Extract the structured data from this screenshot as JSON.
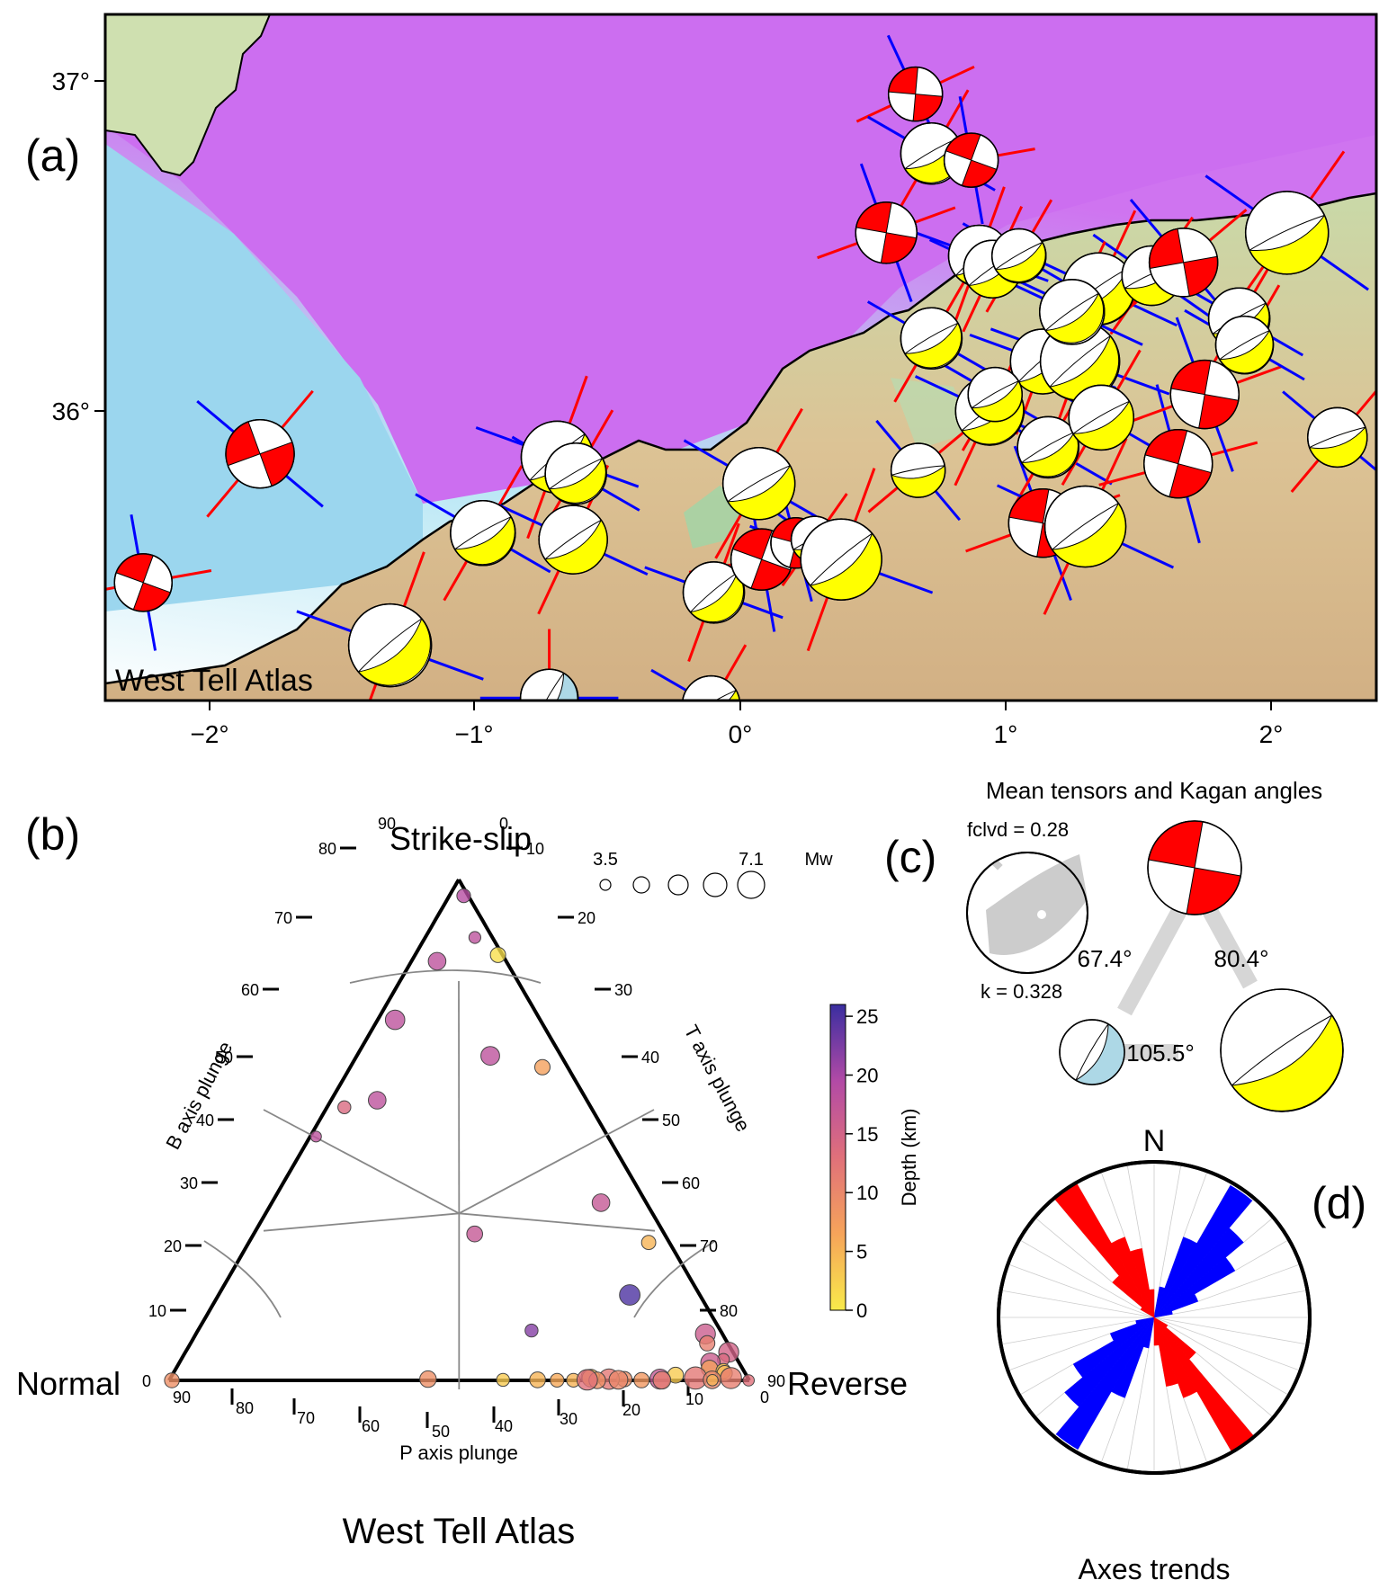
{
  "panel_a": {
    "letter": "(a)",
    "region": "West Tell Atlas",
    "lat_ticks": [
      "37°",
      "36°"
    ],
    "lon_ticks": [
      "−2°",
      "−1°",
      "0°",
      "1°",
      "2°"
    ],
    "colors": {
      "sea_deep": "#cc6ef0",
      "sea_shelf": "#aee2f0",
      "land": "#d8bb8c",
      "strike_slip": "#ff0000",
      "reverse": "#ffff00",
      "normal": "#add8e6",
      "p_axis": "#0000ff",
      "t_axis": "#ff0000"
    }
  },
  "panel_b": {
    "letter": "(b)",
    "title": "West Tell Atlas",
    "vertex_labels": {
      "top": "Strike-slip",
      "left": "Normal",
      "right": "Reverse"
    },
    "axis_labels": {
      "left": "B axis plunge",
      "right": "T axis plunge",
      "bottom": "P axis plunge"
    },
    "left_ticks": [
      "0",
      "10",
      "20",
      "30",
      "40",
      "50",
      "60",
      "70",
      "80",
      "90"
    ],
    "right_ticks": [
      "0",
      "10",
      "20",
      "30",
      "40",
      "50",
      "60",
      "70",
      "80",
      "90"
    ],
    "bottom_ticks": [
      "90",
      "80",
      "70",
      "60",
      "50",
      "40",
      "30",
      "20",
      "10",
      "0"
    ],
    "size_legend": {
      "min": "3.5",
      "max": "7.1",
      "unit": "Mw"
    },
    "colorbar": {
      "label": "Depth (km)",
      "ticks": [
        "0",
        "5",
        "10",
        "15",
        "20",
        "25"
      ]
    }
  },
  "panel_c": {
    "letter": "(c)",
    "title": "Mean tensors and Kagan angles",
    "fclvd": "fclvd = 0.28",
    "k": "k = 0.328",
    "angles": [
      "67.4°",
      "80.4°",
      "105.5°"
    ]
  },
  "panel_d": {
    "letter": "(d)",
    "north": "N",
    "caption": "Axes trends"
  },
  "chart_data": {
    "type": "scatter",
    "title": "West Tell Atlas",
    "xlabel": "P axis plunge",
    "ylabel": "B axis plunge",
    "colorbar_label": "Depth (km)",
    "clim": [
      0,
      26
    ],
    "size_range_mw": [
      3.5,
      7.1
    ],
    "points": [
      {
        "b": 78,
        "t": 9,
        "p": 5,
        "depth": 19,
        "mw": 4.3
      },
      {
        "b": 70,
        "t": 17,
        "p": 10,
        "depth": 18,
        "mw": 4.0
      },
      {
        "b": 66,
        "t": 22,
        "p": 5,
        "depth": 1,
        "mw": 4.6
      },
      {
        "b": 65,
        "t": 12,
        "p": 20,
        "depth": 18,
        "mw": 5.0
      },
      {
        "b": 58,
        "t": 10,
        "p": 30,
        "depth": 18,
        "mw": 5.3
      },
      {
        "b": 52,
        "t": 28,
        "p": 20,
        "depth": 18,
        "mw": 5.2
      },
      {
        "b": 52,
        "t": 35,
        "p": 12,
        "depth": 7,
        "mw": 4.6
      },
      {
        "b": 48,
        "t": 10,
        "p": 41,
        "depth": 14,
        "mw": 4.2
      },
      {
        "b": 47,
        "t": 16,
        "p": 36,
        "depth": 18,
        "mw": 5.0
      },
      {
        "b": 46,
        "t": 6,
        "p": 47,
        "depth": 18,
        "mw": 3.8
      },
      {
        "b": 36,
        "t": 48,
        "p": 16,
        "depth": 17,
        "mw": 5.0
      },
      {
        "b": 32,
        "t": 57,
        "p": 11,
        "depth": 5,
        "mw": 4.4
      },
      {
        "b": 31,
        "t": 36,
        "p": 33,
        "depth": 17,
        "mw": 4.7
      },
      {
        "b": 24,
        "t": 56,
        "p": 20,
        "depth": 25,
        "mw": 5.5
      },
      {
        "b": 18,
        "t": 72,
        "p": 10,
        "depth": 16,
        "mw": 5.4
      },
      {
        "b": 16,
        "t": 73,
        "p": 11,
        "depth": 11,
        "mw": 4.6
      },
      {
        "b": 18,
        "t": 48,
        "p": 34,
        "depth": 22,
        "mw": 4.2
      },
      {
        "b": 14,
        "t": 81,
        "p": 5,
        "depth": 15,
        "mw": 5.4
      },
      {
        "b": 12,
        "t": 79,
        "p": 9,
        "depth": 14,
        "mw": 4.0
      },
      {
        "b": 11,
        "t": 76,
        "p": 13,
        "depth": 16,
        "mw": 5.3
      },
      {
        "b": 9,
        "t": 77,
        "p": 14,
        "depth": 7,
        "mw": 4.8
      },
      {
        "b": 8,
        "t": 81,
        "p": 11,
        "depth": 3,
        "mw": 4.5
      },
      {
        "b": 7,
        "t": 82,
        "p": 11,
        "depth": 5,
        "mw": 4.6
      },
      {
        "b": 6,
        "t": 73,
        "p": 21,
        "depth": 3,
        "mw": 4.7
      },
      {
        "b": 4,
        "t": 86,
        "p": 10,
        "depth": 11,
        "mw": 5.6
      },
      {
        "b": 5,
        "t": 62,
        "p": 33,
        "depth": 6,
        "mw": 4.5
      },
      {
        "b": 4,
        "t": 63,
        "p": 33,
        "depth": 4,
        "mw": 5.0
      },
      {
        "b": 3,
        "t": 68,
        "p": 29,
        "depth": 9,
        "mw": 4.6
      },
      {
        "b": 4,
        "t": 78,
        "p": 18,
        "depth": 12,
        "mw": 5.8
      },
      {
        "b": 2,
        "t": 83,
        "p": 15,
        "depth": 10,
        "mw": 5.0
      },
      {
        "b": 3,
        "t": 73,
        "p": 24,
        "depth": 17,
        "mw": 5.4
      },
      {
        "b": 2,
        "t": 58,
        "p": 40,
        "depth": 5,
        "mw": 4.7
      },
      {
        "b": 3,
        "t": 66,
        "p": 31,
        "depth": 12,
        "mw": 5.5
      },
      {
        "b": 2,
        "t": 68,
        "p": 30,
        "depth": 10,
        "mw": 5.2
      },
      {
        "b": 1,
        "t": 72,
        "p": 27,
        "depth": 8,
        "mw": 4.6
      },
      {
        "b": 1,
        "t": 75,
        "p": 24,
        "depth": 11,
        "mw": 5.0
      },
      {
        "b": 2,
        "t": 54,
        "p": 44,
        "depth": 3,
        "mw": 4.2
      },
      {
        "b": 1,
        "t": 61,
        "p": 38,
        "depth": 6,
        "mw": 4.3
      },
      {
        "b": 3,
        "t": 45,
        "p": 52,
        "depth": 9,
        "mw": 4.8
      },
      {
        "b": 1,
        "t": 84,
        "p": 15,
        "depth": 5,
        "mw": 3.9
      },
      {
        "b": 0,
        "t": 4,
        "p": 86,
        "depth": 9,
        "mw": 4.5
      },
      {
        "b": 0,
        "t": 66,
        "p": 33,
        "depth": 9,
        "mw": 4.8
      },
      {
        "b": 1,
        "t": 63,
        "p": 36,
        "depth": 5,
        "mw": 4.3
      },
      {
        "b": 2,
        "t": 64,
        "p": 34,
        "depth": 13,
        "mw": 5.5
      },
      {
        "b": 0,
        "t": 88,
        "p": 2,
        "depth": 13,
        "mw": 3.9
      }
    ]
  }
}
